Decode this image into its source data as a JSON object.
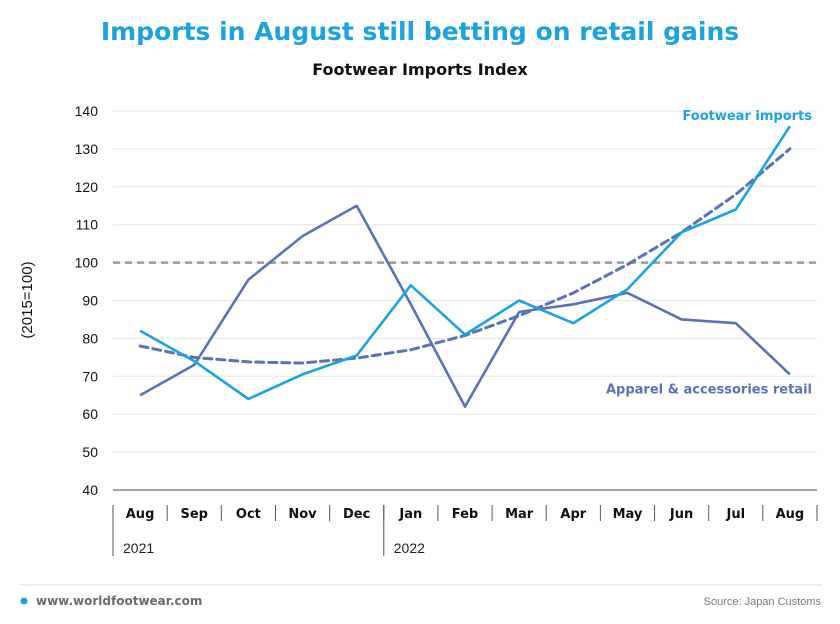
{
  "colors": {
    "title": "#1aa3df",
    "footwear": "#1aa3df",
    "apparel": "#5b73b3",
    "reference": "#9a9a9a",
    "grid": "#e6e6e6",
    "bullet": "#1aa3df"
  },
  "chart_data": {
    "type": "line",
    "title": "Imports in August still betting on retail gains",
    "subtitle": "Footwear Imports Index",
    "ylabel": "(2015=100)",
    "ylim": [
      40,
      140
    ],
    "yticks": [
      40,
      50,
      60,
      70,
      80,
      90,
      100,
      110,
      120,
      130,
      140
    ],
    "categories": [
      "Aug",
      "Sep",
      "Oct",
      "Nov",
      "Dec",
      "Jan",
      "Feb",
      "Mar",
      "Apr",
      "May",
      "Jun",
      "Jul",
      "Aug"
    ],
    "years": [
      {
        "label": "2021",
        "start_index": 0
      },
      {
        "label": "2022",
        "start_index": 5
      }
    ],
    "reference_line": 100,
    "grid": true,
    "series": [
      {
        "name": "Footwear imports",
        "values": [
          82,
          74,
          64,
          70.5,
          75.5,
          94,
          81,
          90,
          84,
          93,
          108,
          114,
          136
        ],
        "trend": [
          78,
          75,
          73.8,
          73.5,
          74.8,
          77,
          80.8,
          86,
          92,
          99.5,
          108,
          118,
          130
        ]
      },
      {
        "name": "Apparel & accessories retail",
        "values": [
          65,
          73,
          95.5,
          107,
          115,
          89,
          62,
          87,
          89,
          92,
          85,
          84,
          70.5
        ]
      }
    ]
  },
  "footer": {
    "website": "www.worldfootwear.com",
    "source": "Source: Japan Customs"
  }
}
